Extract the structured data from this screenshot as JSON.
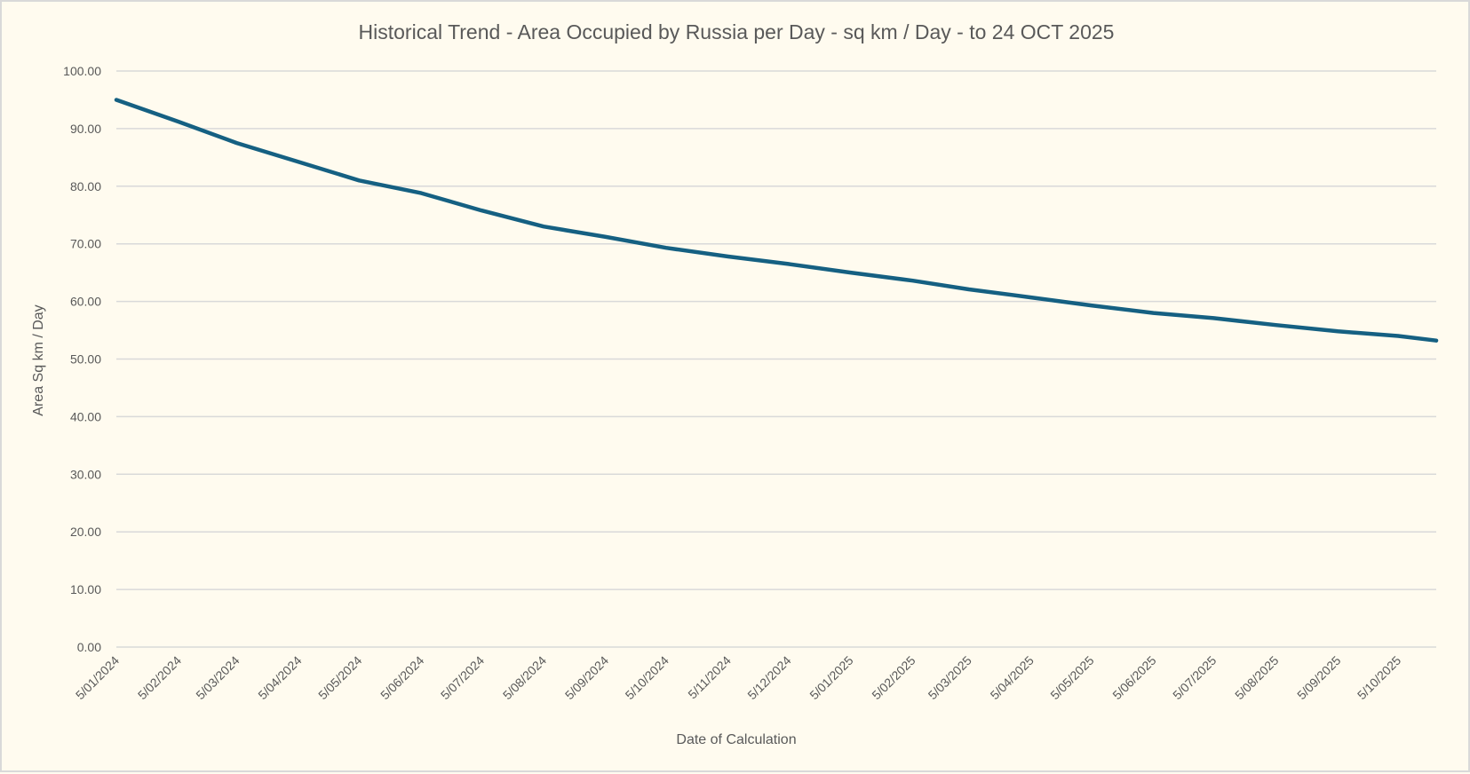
{
  "chart_data": {
    "type": "line",
    "title": "Historical Trend - Area Occupied by Russia per Day - sq km / Day - to 24 OCT 2025",
    "xlabel": "Date of Calculation",
    "ylabel": "Area Sq km / Day",
    "ylim": [
      0,
      100
    ],
    "yticks": [
      "0.00",
      "10.00",
      "20.00",
      "30.00",
      "40.00",
      "50.00",
      "60.00",
      "70.00",
      "80.00",
      "90.00",
      "100.00"
    ],
    "xlim": [
      "2024-01-05",
      "2025-10-24"
    ],
    "xticks": [
      "5/01/2024",
      "5/02/2024",
      "5/03/2024",
      "5/04/2024",
      "5/05/2024",
      "5/06/2024",
      "5/07/2024",
      "5/08/2024",
      "5/09/2024",
      "5/10/2024",
      "5/11/2024",
      "5/12/2024",
      "5/01/2025",
      "5/02/2025",
      "5/03/2025",
      "5/04/2025",
      "5/05/2025",
      "5/06/2025",
      "5/07/2025",
      "5/08/2025",
      "5/09/2025",
      "5/10/2025"
    ],
    "grid": true,
    "line_color": "#156082",
    "x": [
      "2024-01-05",
      "2024-02-05",
      "2024-03-05",
      "2024-04-05",
      "2024-05-05",
      "2024-06-05",
      "2024-07-05",
      "2024-08-05",
      "2024-09-05",
      "2024-10-05",
      "2024-11-05",
      "2024-12-05",
      "2025-01-05",
      "2025-02-05",
      "2025-03-05",
      "2025-04-05",
      "2025-05-05",
      "2025-06-05",
      "2025-07-05",
      "2025-08-05",
      "2025-09-05",
      "2025-10-05",
      "2025-10-24"
    ],
    "y": [
      95.0,
      91.2,
      87.5,
      84.2,
      81.0,
      78.8,
      75.8,
      73.0,
      71.2,
      69.3,
      67.8,
      66.5,
      65.0,
      63.6,
      62.1,
      60.7,
      59.3,
      58.0,
      57.1,
      55.9,
      54.8,
      54.0,
      53.2
    ]
  }
}
